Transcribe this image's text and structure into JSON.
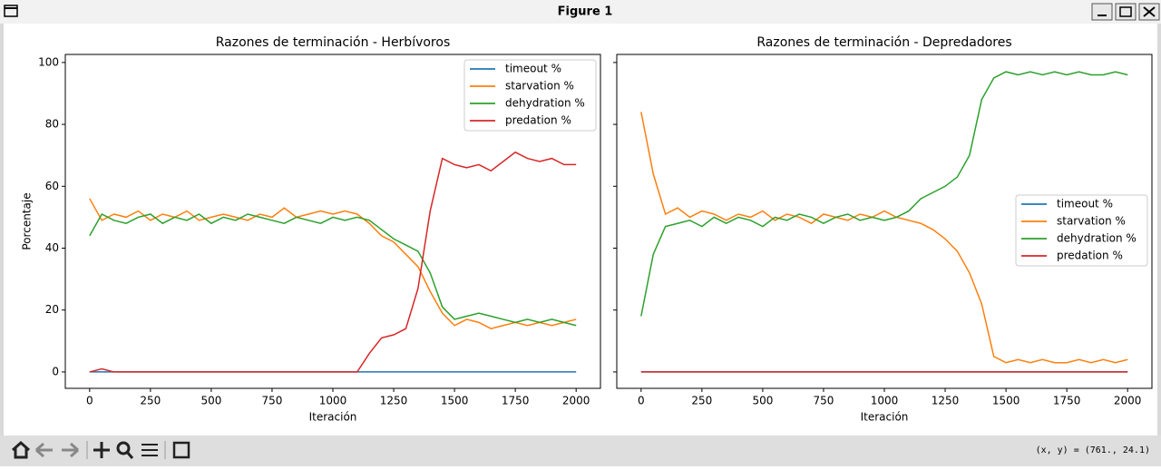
{
  "window_title": "Figure 1",
  "status_text": "(x, y) = (761., 24.1)",
  "chart_data": [
    {
      "type": "line",
      "title": "Razones de terminación - Herbívoros",
      "xlabel": "Iteración",
      "ylabel": "Porcentaje",
      "x": [
        0,
        50,
        100,
        150,
        200,
        250,
        300,
        350,
        400,
        450,
        500,
        550,
        600,
        650,
        700,
        750,
        800,
        850,
        900,
        950,
        1000,
        1050,
        1100,
        1150,
        1200,
        1250,
        1300,
        1350,
        1400,
        1450,
        1500,
        1550,
        1600,
        1650,
        1700,
        1750,
        1800,
        1850,
        1900,
        1950,
        2000
      ],
      "series": [
        {
          "name": "timeout %",
          "color": "#1f77b4",
          "values": [
            0,
            0,
            0,
            0,
            0,
            0,
            0,
            0,
            0,
            0,
            0,
            0,
            0,
            0,
            0,
            0,
            0,
            0,
            0,
            0,
            0,
            0,
            0,
            0,
            0,
            0,
            0,
            0,
            0,
            0,
            0,
            0,
            0,
            0,
            0,
            0,
            0,
            0,
            0,
            0,
            0
          ]
        },
        {
          "name": "starvation %",
          "color": "#ff7f0e",
          "values": [
            56,
            49,
            51,
            50,
            52,
            49,
            51,
            50,
            52,
            49,
            50,
            51,
            50,
            49,
            51,
            50,
            53,
            50,
            51,
            52,
            51,
            52,
            51,
            48,
            44,
            42,
            38,
            34,
            26,
            19,
            15,
            17,
            16,
            14,
            15,
            16,
            15,
            16,
            15,
            16,
            17
          ]
        },
        {
          "name": "dehydration %",
          "color": "#2ca02c",
          "values": [
            44,
            51,
            49,
            48,
            50,
            51,
            48,
            50,
            49,
            51,
            48,
            50,
            49,
            51,
            50,
            49,
            48,
            50,
            49,
            48,
            50,
            49,
            50,
            49,
            46,
            43,
            41,
            39,
            32,
            21,
            17,
            18,
            19,
            18,
            17,
            16,
            17,
            16,
            17,
            16,
            15
          ]
        },
        {
          "name": "predation %",
          "color": "#d62728",
          "values": [
            0,
            1,
            0,
            0,
            0,
            0,
            0,
            0,
            0,
            0,
            0,
            0,
            0,
            0,
            0,
            0,
            0,
            0,
            0,
            0,
            0,
            0,
            0,
            6,
            11,
            12,
            14,
            27,
            52,
            69,
            67,
            66,
            67,
            65,
            68,
            71,
            69,
            68,
            69,
            67,
            67
          ]
        }
      ],
      "xlim": [
        -100,
        2100
      ],
      "ylim": [
        -5.3,
        102.6
      ],
      "xticks": [
        0,
        250,
        500,
        750,
        1000,
        1250,
        1500,
        1750,
        2000
      ],
      "yticks": [
        0,
        20,
        40,
        60,
        80,
        100
      ],
      "ytick_labels": true,
      "legend": "upper right"
    },
    {
      "type": "line",
      "title": "Razones de terminación - Depredadores",
      "xlabel": "Iteración",
      "x": [
        0,
        50,
        100,
        150,
        200,
        250,
        300,
        350,
        400,
        450,
        500,
        550,
        600,
        650,
        700,
        750,
        800,
        850,
        900,
        950,
        1000,
        1050,
        1100,
        1150,
        1200,
        1250,
        1300,
        1350,
        1400,
        1450,
        1500,
        1550,
        1600,
        1650,
        1700,
        1750,
        1800,
        1850,
        1900,
        1950,
        2000
      ],
      "series": [
        {
          "name": "timeout %",
          "color": "#1f77b4",
          "values": [
            0,
            0,
            0,
            0,
            0,
            0,
            0,
            0,
            0,
            0,
            0,
            0,
            0,
            0,
            0,
            0,
            0,
            0,
            0,
            0,
            0,
            0,
            0,
            0,
            0,
            0,
            0,
            0,
            0,
            0,
            0,
            0,
            0,
            0,
            0,
            0,
            0,
            0,
            0,
            0,
            0
          ]
        },
        {
          "name": "starvation %",
          "color": "#ff7f0e",
          "values": [
            84,
            64,
            51,
            53,
            50,
            52,
            51,
            49,
            51,
            50,
            52,
            49,
            51,
            50,
            48,
            51,
            50,
            49,
            51,
            50,
            52,
            50,
            49,
            48,
            46,
            43,
            39,
            32,
            22,
            5,
            3,
            4,
            3,
            4,
            3,
            3,
            4,
            3,
            4,
            3,
            4
          ]
        },
        {
          "name": "dehydration %",
          "color": "#2ca02c",
          "values": [
            18,
            38,
            47,
            48,
            49,
            47,
            50,
            48,
            50,
            49,
            47,
            50,
            49,
            51,
            50,
            48,
            50,
            51,
            49,
            50,
            49,
            50,
            52,
            56,
            58,
            60,
            63,
            70,
            88,
            95,
            97,
            96,
            97,
            96,
            97,
            96,
            97,
            96,
            96,
            97,
            96
          ]
        },
        {
          "name": "predation %",
          "color": "#d62728",
          "values": [
            0,
            0,
            0,
            0,
            0,
            0,
            0,
            0,
            0,
            0,
            0,
            0,
            0,
            0,
            0,
            0,
            0,
            0,
            0,
            0,
            0,
            0,
            0,
            0,
            0,
            0,
            0,
            0,
            0,
            0,
            0,
            0,
            0,
            0,
            0,
            0,
            0,
            0,
            0,
            0,
            0
          ]
        }
      ],
      "xlim": [
        -100,
        2100
      ],
      "ylim": [
        -5.3,
        102.6
      ],
      "xticks": [
        0,
        250,
        500,
        750,
        1000,
        1250,
        1500,
        1750,
        2000
      ],
      "yticks": [
        0,
        20,
        40,
        60,
        80,
        100
      ],
      "ytick_labels": false,
      "legend": "center right"
    }
  ]
}
